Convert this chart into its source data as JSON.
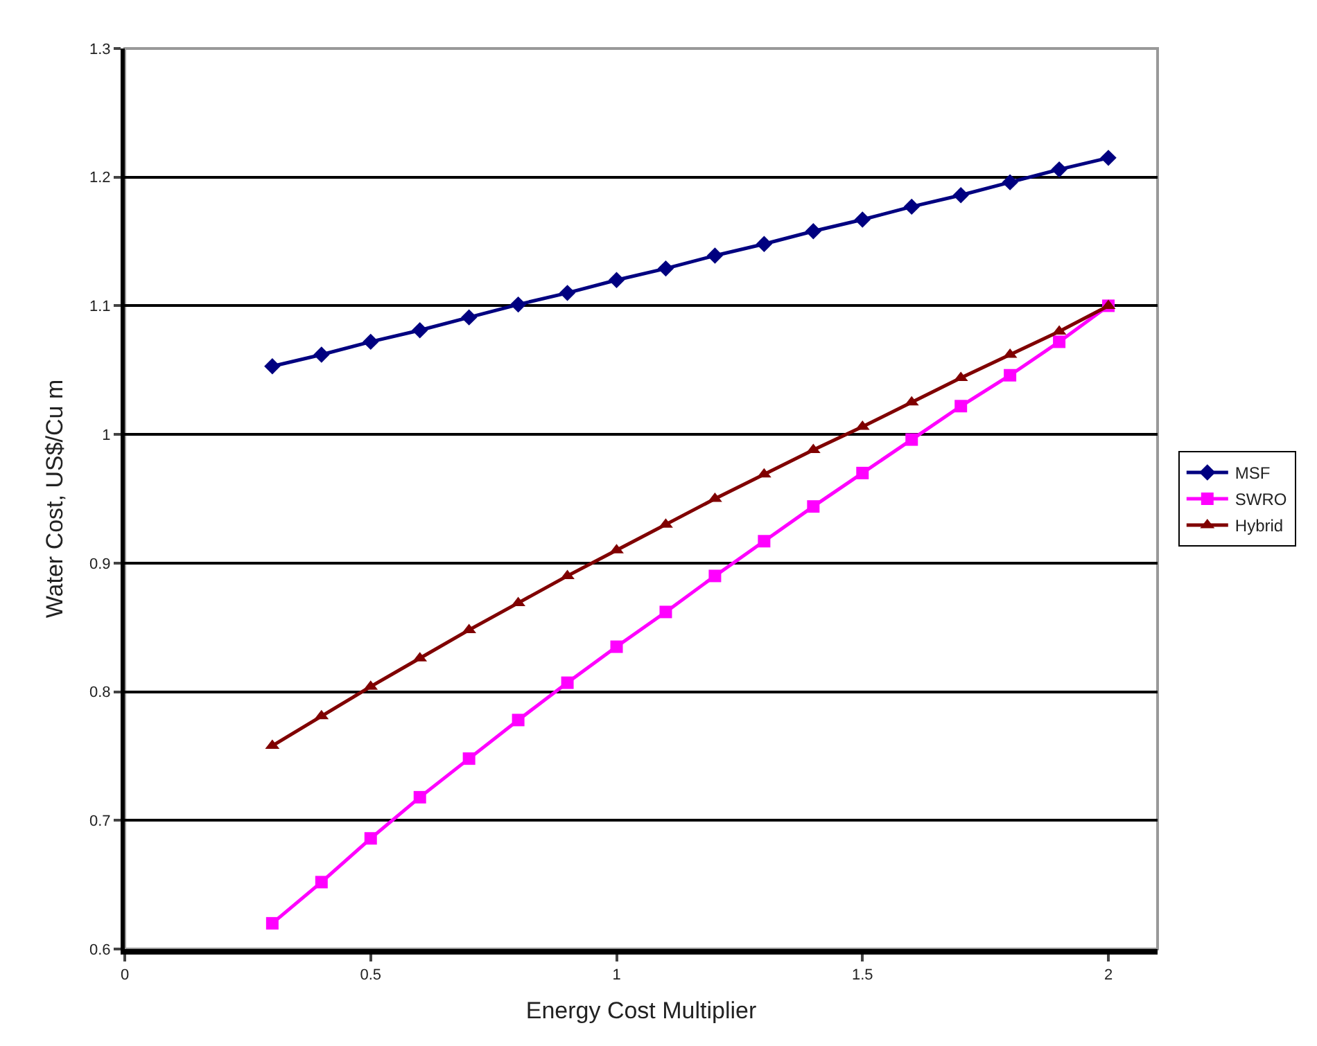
{
  "chart_data": {
    "type": "line",
    "xlabel": "Energy Cost Multiplier",
    "ylabel": "Water Cost, US$/Cu m",
    "x": [
      0.3,
      0.4,
      0.5,
      0.6,
      0.7,
      0.8,
      0.9,
      1.0,
      1.1,
      1.2,
      1.3,
      1.4,
      1.5,
      1.6,
      1.7,
      1.8,
      1.9,
      2.0
    ],
    "series": [
      {
        "name": "MSF",
        "color": "#000080",
        "marker": "diamond",
        "values": [
          1.053,
          1.062,
          1.072,
          1.081,
          1.091,
          1.101,
          1.11,
          1.12,
          1.129,
          1.139,
          1.148,
          1.158,
          1.167,
          1.177,
          1.186,
          1.196,
          1.206,
          1.215
        ]
      },
      {
        "name": "SWRO",
        "color": "#ff00ff",
        "marker": "square",
        "values": [
          0.62,
          0.652,
          0.686,
          0.718,
          0.748,
          0.778,
          0.807,
          0.835,
          0.862,
          0.89,
          0.917,
          0.944,
          0.97,
          0.996,
          1.022,
          1.046,
          1.072,
          1.1
        ]
      },
      {
        "name": "Hybrid",
        "color": "#800000",
        "marker": "triangle",
        "values": [
          0.758,
          0.781,
          0.804,
          0.826,
          0.848,
          0.869,
          0.89,
          0.91,
          0.93,
          0.95,
          0.969,
          0.988,
          1.006,
          1.025,
          1.044,
          1.062,
          1.08,
          1.1
        ]
      }
    ],
    "xlim": [
      0,
      2.1
    ],
    "xticks": [
      0,
      0.5,
      1,
      1.5,
      2
    ],
    "ylim": [
      0.6,
      1.3
    ],
    "yticks": [
      0.6,
      0.7,
      0.8,
      0.9,
      1,
      1.1,
      1.2,
      1.3
    ],
    "grid": "y",
    "legend": "right",
    "line_style": "solid"
  }
}
